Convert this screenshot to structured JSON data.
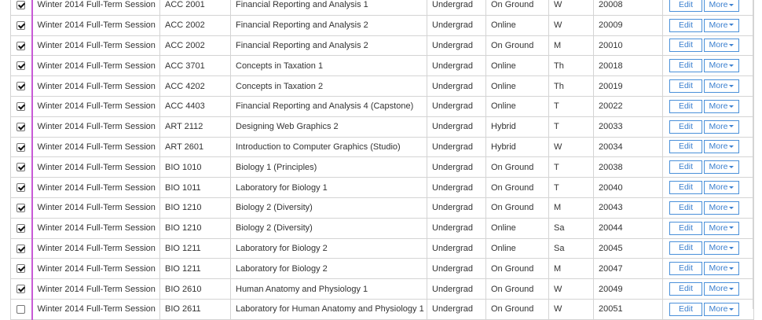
{
  "actions": {
    "edit_label": "Edit",
    "more_label": "More"
  },
  "rows": [
    {
      "checked": true,
      "term": "Winter 2014 Full-Term Session",
      "code": "ACC 2001",
      "title": "Financial Reporting and Analysis 1",
      "level": "Undergrad",
      "mode": "On Ground",
      "day": "W",
      "crn": "20008"
    },
    {
      "checked": true,
      "term": "Winter 2014 Full-Term Session",
      "code": "ACC 2002",
      "title": "Financial Reporting and Analysis 2",
      "level": "Undergrad",
      "mode": "Online",
      "day": "W",
      "crn": "20009"
    },
    {
      "checked": true,
      "term": "Winter 2014 Full-Term Session",
      "code": "ACC 2002",
      "title": "Financial Reporting and Analysis 2",
      "level": "Undergrad",
      "mode": "On Ground",
      "day": "M",
      "crn": "20010"
    },
    {
      "checked": true,
      "term": "Winter 2014 Full-Term Session",
      "code": "ACC 3701",
      "title": "Concepts in Taxation 1",
      "level": "Undergrad",
      "mode": "Online",
      "day": "Th",
      "crn": "20018"
    },
    {
      "checked": true,
      "term": "Winter 2014 Full-Term Session",
      "code": "ACC 4202",
      "title": "Concepts in Taxation 2",
      "level": "Undergrad",
      "mode": "Online",
      "day": "Th",
      "crn": "20019"
    },
    {
      "checked": true,
      "term": "Winter 2014 Full-Term Session",
      "code": "ACC 4403",
      "title": "Financial Reporting and Analysis 4 (Capstone)",
      "level": "Undergrad",
      "mode": "Online",
      "day": "T",
      "crn": "20022"
    },
    {
      "checked": true,
      "term": "Winter 2014 Full-Term Session",
      "code": "ART 2112",
      "title": "Designing Web Graphics 2",
      "level": "Undergrad",
      "mode": "Hybrid",
      "day": "T",
      "crn": "20033"
    },
    {
      "checked": true,
      "term": "Winter 2014 Full-Term Session",
      "code": "ART 2601",
      "title": "Introduction to Computer Graphics (Studio)",
      "level": "Undergrad",
      "mode": "Hybrid",
      "day": "W",
      "crn": "20034"
    },
    {
      "checked": true,
      "term": "Winter 2014 Full-Term Session",
      "code": "BIO 1010",
      "title": "Biology 1 (Principles)",
      "level": "Undergrad",
      "mode": "On Ground",
      "day": "T",
      "crn": "20038"
    },
    {
      "checked": true,
      "term": "Winter 2014 Full-Term Session",
      "code": "BIO 1011",
      "title": "Laboratory for Biology 1",
      "level": "Undergrad",
      "mode": "On Ground",
      "day": "T",
      "crn": "20040"
    },
    {
      "checked": true,
      "term": "Winter 2014 Full-Term Session",
      "code": "BIO 1210",
      "title": "Biology 2 (Diversity)",
      "level": "Undergrad",
      "mode": "On Ground",
      "day": "M",
      "crn": "20043"
    },
    {
      "checked": true,
      "term": "Winter 2014 Full-Term Session",
      "code": "BIO 1210",
      "title": "Biology 2 (Diversity)",
      "level": "Undergrad",
      "mode": "Online",
      "day": "Sa",
      "crn": "20044"
    },
    {
      "checked": true,
      "term": "Winter 2014 Full-Term Session",
      "code": "BIO 1211",
      "title": "Laboratory for Biology 2",
      "level": "Undergrad",
      "mode": "Online",
      "day": "Sa",
      "crn": "20045"
    },
    {
      "checked": true,
      "term": "Winter 2014 Full-Term Session",
      "code": "BIO 1211",
      "title": "Laboratory for Biology 2",
      "level": "Undergrad",
      "mode": "On Ground",
      "day": "M",
      "crn": "20047"
    },
    {
      "checked": true,
      "term": "Winter 2014 Full-Term Session",
      "code": "BIO 2610",
      "title": "Human Anatomy and Physiology 1",
      "level": "Undergrad",
      "mode": "On Ground",
      "day": "W",
      "crn": "20049"
    },
    {
      "checked": false,
      "term": "Winter 2014 Full-Term Session",
      "code": "BIO 2611",
      "title": "Laboratory for Human Anatomy and Physiology 1",
      "level": "Undergrad",
      "mode": "On Ground",
      "day": "W",
      "crn": "20051"
    }
  ],
  "colors": {
    "accent": "#4a90d9",
    "row_marker": "#c85ad6",
    "border": "#d4d4d4"
  },
  "icons": {
    "checkbox": "checkbox-icon",
    "more_caret": "caret-down-icon"
  }
}
